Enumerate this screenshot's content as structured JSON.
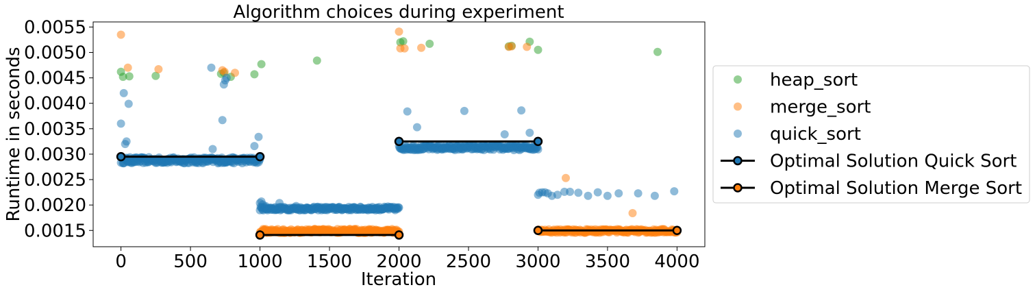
{
  "chart_data": {
    "type": "scatter",
    "title": "Algorithm choices during experiment",
    "xlabel": "Iteration",
    "ylabel": "Runtime in seconds",
    "xlim": [
      -200,
      4200
    ],
    "ylim": [
      0.00118,
      0.0056
    ],
    "xticks": [
      0,
      500,
      1000,
      1500,
      2000,
      2500,
      3000,
      3500,
      4000
    ],
    "xtick_labels": [
      "0",
      "500",
      "1000",
      "1500",
      "2000",
      "2500",
      "3000",
      "3500",
      "4000"
    ],
    "yticks": [
      0.0015,
      0.002,
      0.0025,
      0.003,
      0.0035,
      0.004,
      0.0045,
      0.005,
      0.0055
    ],
    "ytick_labels": [
      "0.0015",
      "0.0020",
      "0.0025",
      "0.0030",
      "0.0035",
      "0.0040",
      "0.0045",
      "0.0050",
      "0.0055"
    ],
    "grid": false,
    "legend_position": "outside-right",
    "series": [
      {
        "name": "heap_sort",
        "kind": "scatter",
        "color": "#2ca02c",
        "x": [
          0,
          15,
          60,
          250,
          720,
          740,
          790,
          960,
          1010,
          1410,
          2010,
          2030,
          2220,
          2790,
          2810,
          2940,
          3000,
          3860
        ],
        "y": [
          0.00462,
          0.00452,
          0.00453,
          0.00454,
          0.00458,
          0.0046,
          0.00452,
          0.00457,
          0.00477,
          0.00484,
          0.0052,
          0.00522,
          0.00517,
          0.00512,
          0.00513,
          0.00521,
          0.00505,
          0.00501
        ]
      },
      {
        "name": "merge_sort",
        "kind": "scatter",
        "color": "#ff7f0e",
        "x": [
          0,
          50,
          270,
          730,
          745,
          820,
          2000,
          2010,
          2040,
          2160,
          2790,
          2810,
          2920,
          3200,
          3680
        ],
        "y": [
          0.00535,
          0.0047,
          0.00467,
          0.00465,
          0.00462,
          0.0046,
          0.00541,
          0.00508,
          0.00508,
          0.00509,
          0.00511,
          0.00512,
          0.00511,
          0.00253,
          0.00184
        ]
      },
      {
        "name": "quick_sort",
        "kind": "scatter",
        "color": "#1f77b4",
        "x": [
          0,
          20,
          30,
          40,
          55,
          650,
          660,
          730,
          740,
          750,
          760,
          960,
          990,
          1000,
          1010,
          1020,
          1040,
          1140,
          1260,
          1560,
          1810,
          1920,
          2060,
          2130,
          2470,
          2760,
          2880,
          2940,
          3000,
          3010,
          3030,
          3050,
          3070,
          3100,
          3140,
          3190,
          3230,
          3290,
          3360,
          3430,
          3500,
          3580,
          3720,
          3840,
          3980
        ],
        "y": [
          0.0036,
          0.0042,
          0.0032,
          0.00325,
          0.00399,
          0.0047,
          0.0031,
          0.00367,
          0.00437,
          0.00445,
          0.0045,
          0.00316,
          0.00334,
          0.00204,
          0.00207,
          0.00201,
          0.00198,
          0.00204,
          0.00198,
          0.00195,
          0.00192,
          0.00197,
          0.00384,
          0.00353,
          0.00385,
          0.00339,
          0.00386,
          0.00342,
          0.0022,
          0.00224,
          0.00225,
          0.00225,
          0.00223,
          0.00218,
          0.0022,
          0.00226,
          0.00226,
          0.00224,
          0.00218,
          0.00225,
          0.00218,
          0.00223,
          0.00223,
          0.00218,
          0.00227
        ]
      },
      {
        "name": "quick_sort",
        "kind": "band",
        "color": "#1f77b4",
        "segments": [
          {
            "x_from": 0,
            "x_to": 1000,
            "center": 0.00288,
            "spread": 0.00012
          },
          {
            "x_from": 1000,
            "x_to": 2000,
            "center": 0.00193,
            "spread": 7e-05
          },
          {
            "x_from": 2000,
            "x_to": 3000,
            "center": 0.00313,
            "spread": 0.0001
          }
        ]
      },
      {
        "name": "merge_sort",
        "kind": "band",
        "color": "#ff7f0e",
        "segments": [
          {
            "x_from": 1000,
            "x_to": 2000,
            "center": 0.00149,
            "spread": 8e-05
          },
          {
            "x_from": 3000,
            "x_to": 4000,
            "center": 0.00149,
            "spread": 7e-05
          }
        ]
      },
      {
        "name": "Optimal Solution Quick Sort",
        "kind": "line",
        "color": "#000000",
        "marker_color": "#1f77b4",
        "x": [
          0,
          1000,
          2000,
          3000
        ],
        "y": [
          0.00295,
          0.00295,
          0.00325,
          0.00325
        ],
        "segments": [
          [
            0,
            1
          ],
          [
            2,
            3
          ]
        ]
      },
      {
        "name": "Optimal Solution Merge Sort",
        "kind": "line",
        "color": "#000000",
        "marker_color": "#ff7f0e",
        "x": [
          1000,
          2000,
          3000,
          4000
        ],
        "y": [
          0.00141,
          0.00141,
          0.0015,
          0.0015
        ],
        "segments": [
          [
            0,
            1
          ],
          [
            2,
            3
          ]
        ]
      }
    ],
    "legend": [
      {
        "label": "heap_sort",
        "type": "marker",
        "color": "#2ca02c"
      },
      {
        "label": "merge_sort",
        "type": "marker",
        "color": "#ff7f0e"
      },
      {
        "label": "quick_sort",
        "type": "marker",
        "color": "#1f77b4"
      },
      {
        "label": "Optimal Solution Quick Sort",
        "type": "line",
        "color": "#000000",
        "marker_color": "#1f77b4"
      },
      {
        "label": "Optimal Solution Merge Sort",
        "type": "line",
        "color": "#000000",
        "marker_color": "#ff7f0e"
      }
    ]
  }
}
